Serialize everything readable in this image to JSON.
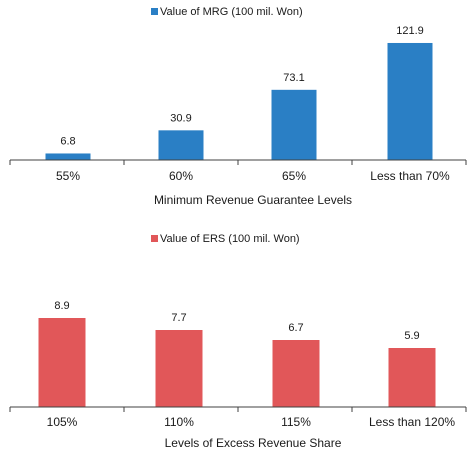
{
  "chart_data": [
    {
      "type": "bar",
      "categories": [
        "55%",
        "60%",
        "65%",
        "Less than 70%"
      ],
      "series": [
        {
          "name": "Value of MRG (100 mil. Won)",
          "values": [
            6.8,
            30.9,
            73.1,
            121.9
          ]
        }
      ],
      "value_labels": [
        "6.8",
        "30.9",
        "73.1",
        "121.9"
      ],
      "xlabel": "Minimum Revenue Guarantee Levels",
      "ylabel": "",
      "ylim": [
        0,
        125
      ],
      "color": "#2A7FC5",
      "grid": false,
      "legend_position": "top-center"
    },
    {
      "type": "bar",
      "categories": [
        "105%",
        "110%",
        "115%",
        "Less than 120%"
      ],
      "series": [
        {
          "name": "Value of ERS (100 mil. Won)",
          "values": [
            8.9,
            7.7,
            6.7,
            5.9
          ]
        }
      ],
      "value_labels": [
        "8.9",
        "7.7",
        "6.7",
        "5.9"
      ],
      "xlabel": "Levels of Excess Revenue Share",
      "ylabel": "",
      "ylim": [
        0,
        12
      ],
      "color": "#E15759",
      "grid": false,
      "legend_position": "top-center"
    }
  ]
}
